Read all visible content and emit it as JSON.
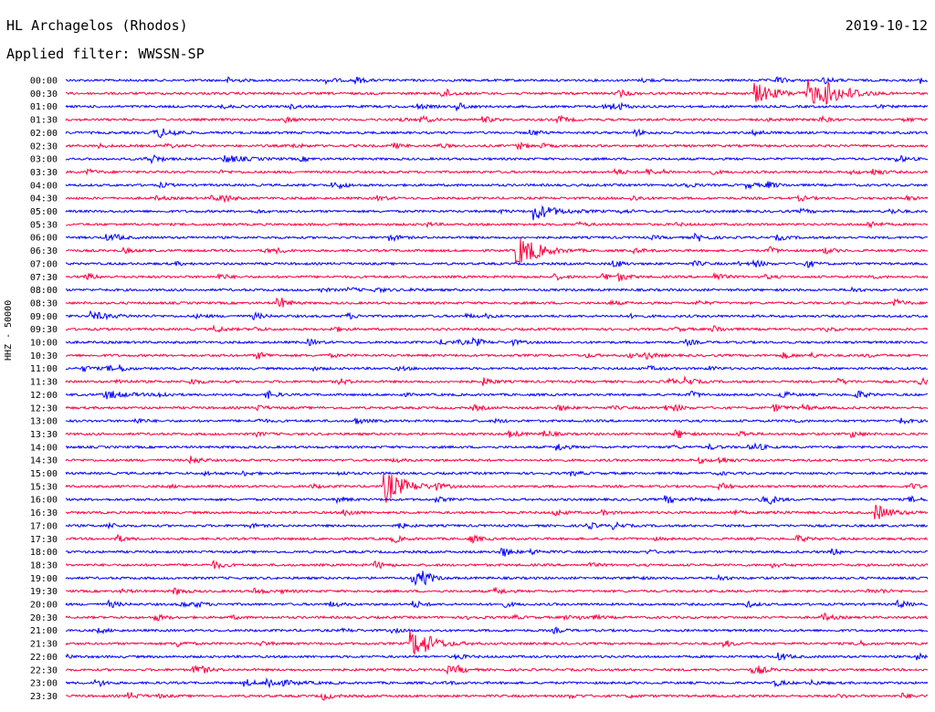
{
  "header": {
    "station": "HL Archagelos (Rhodos)",
    "filter": "Applied filter: WWSSN-SP",
    "date": "2019-10-12"
  },
  "axis": {
    "ylabel": "HHZ - 50000"
  },
  "colors": {
    "trace_a": "#0000ff",
    "trace_b": "#ff0040"
  },
  "chart_data": {
    "type": "line",
    "title": "HL Archagelos (Rhodos)",
    "subtitle": "Applied filter: WWSSN-SP",
    "ylabel": "HHZ - 50000",
    "rows": [
      "00:00",
      "00:30",
      "01:00",
      "01:30",
      "02:00",
      "02:30",
      "03:00",
      "03:30",
      "04:00",
      "04:30",
      "05:00",
      "05:30",
      "06:00",
      "06:30",
      "07:00",
      "07:30",
      "08:00",
      "08:30",
      "09:00",
      "09:30",
      "10:00",
      "10:30",
      "11:00",
      "11:30",
      "12:00",
      "12:30",
      "13:00",
      "13:30",
      "14:00",
      "14:30",
      "15:00",
      "15:30",
      "16:00",
      "16:30",
      "17:00",
      "17:30",
      "18:00",
      "18:30",
      "19:00",
      "19:30",
      "20:00",
      "20:30",
      "21:00",
      "21:30",
      "22:00",
      "22:30",
      "23:00",
      "23:30"
    ],
    "row_minutes": 30,
    "color_cycle": [
      "#0000ff",
      "#ff0040"
    ],
    "events": [
      {
        "row": "00:30",
        "minute": 24.0,
        "amplitude": 1.6
      },
      {
        "row": "00:30",
        "minute": 25.8,
        "amplitude": 2.2
      },
      {
        "row": "00:30",
        "minute": 26.4,
        "amplitude": 1.2
      },
      {
        "row": "05:00",
        "minute": 16.3,
        "amplitude": 1.3
      },
      {
        "row": "06:30",
        "minute": 15.7,
        "amplitude": 2.5
      },
      {
        "row": "15:30",
        "minute": 11.1,
        "amplitude": 2.6
      },
      {
        "row": "21:30",
        "minute": 12.0,
        "amplitude": 2.2
      },
      {
        "row": "03:00",
        "minute": 5.5,
        "amplitude": 0.6
      },
      {
        "row": "09:00",
        "minute": 0.9,
        "amplitude": 0.6
      },
      {
        "row": "12:00",
        "minute": 1.3,
        "amplitude": 0.7
      },
      {
        "row": "16:30",
        "minute": 28.2,
        "amplitude": 0.7
      },
      {
        "row": "23:00",
        "minute": 7.0,
        "amplitude": 0.8
      }
    ]
  }
}
